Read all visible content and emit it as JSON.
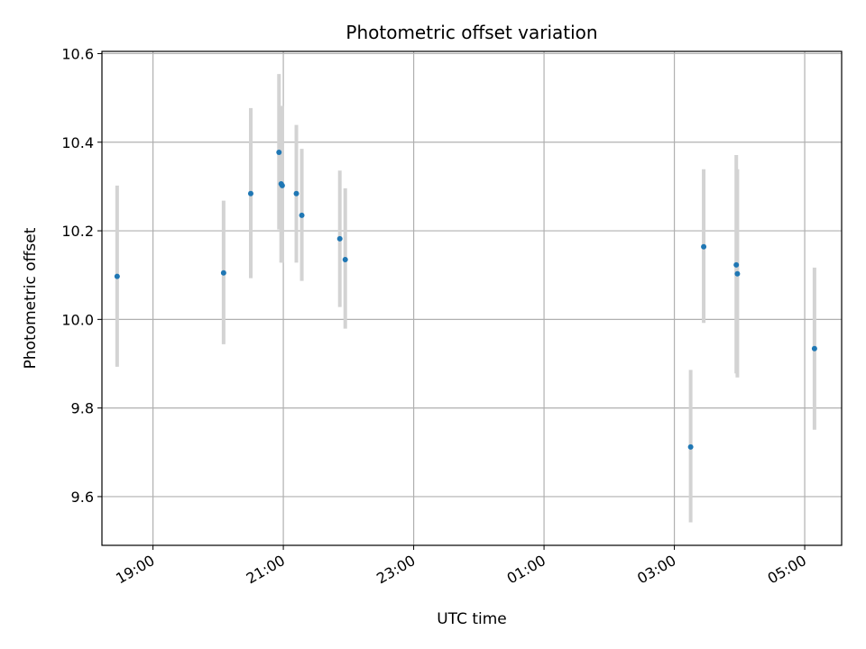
{
  "chart_data": {
    "type": "scatter",
    "title": "Photometric offset variation",
    "xlabel": "UTC time",
    "ylabel": "Photometric offset",
    "x_axis_type": "time",
    "xlim": [
      "18:13",
      "05:34"
    ],
    "ylim": [
      9.49,
      10.605
    ],
    "grid": true,
    "x_ticks": [
      "19:00",
      "21:00",
      "23:00",
      "01:00",
      "03:00",
      "05:00"
    ],
    "y_ticks": [
      "9.6",
      "9.8",
      "10.0",
      "10.2",
      "10.4",
      "10.6"
    ],
    "marker_color": "#1f77b4",
    "errorbar_color": "#d3d3d3",
    "points": [
      {
        "time": "18:27",
        "value": 10.097,
        "lower": 9.893,
        "upper": 10.302
      },
      {
        "time": "20:05",
        "value": 10.105,
        "lower": 9.944,
        "upper": 10.268
      },
      {
        "time": "20:30",
        "value": 10.284,
        "lower": 10.093,
        "upper": 10.477
      },
      {
        "time": "20:56",
        "value": 10.377,
        "lower": 10.203,
        "upper": 10.554
      },
      {
        "time": "20:58",
        "value": 10.306,
        "lower": 10.128,
        "upper": 10.482
      },
      {
        "time": "20:59",
        "value": 10.302,
        "lower": 10.128,
        "upper": 10.482
      },
      {
        "time": "21:12",
        "value": 10.284,
        "lower": 10.128,
        "upper": 10.439
      },
      {
        "time": "21:17",
        "value": 10.235,
        "lower": 10.087,
        "upper": 10.385
      },
      {
        "time": "21:52",
        "value": 10.182,
        "lower": 10.028,
        "upper": 10.336
      },
      {
        "time": "21:57",
        "value": 10.135,
        "lower": 9.979,
        "upper": 10.296
      },
      {
        "time": "03:15",
        "value": 9.712,
        "lower": 9.542,
        "upper": 9.886
      },
      {
        "time": "03:27",
        "value": 10.164,
        "lower": 9.992,
        "upper": 10.339
      },
      {
        "time": "03:57",
        "value": 10.123,
        "lower": 9.878,
        "upper": 10.371
      },
      {
        "time": "03:58",
        "value": 10.103,
        "lower": 9.869,
        "upper": 10.339
      },
      {
        "time": "05:09",
        "value": 9.934,
        "lower": 9.751,
        "upper": 10.117
      }
    ]
  }
}
